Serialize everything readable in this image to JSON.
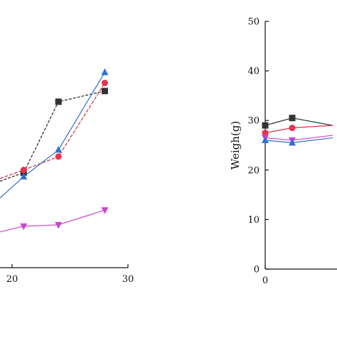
{
  "chart_data": [
    {
      "type": "line",
      "title": "",
      "xlabel": "",
      "ylabel": "",
      "xlim": [
        10,
        30
      ],
      "x_ticks": [
        20,
        30
      ],
      "grid": false,
      "legend": "none",
      "series": [
        {
          "marker": "square",
          "color": "#333333",
          "line_color": "#222222",
          "x": [
            21,
            24,
            28
          ],
          "y": [
            35.5,
            62,
            66
          ]
        },
        {
          "marker": "circle",
          "color": "#e8334a",
          "line_color": "#d03040",
          "x": [
            21,
            24,
            28
          ],
          "y": [
            36.5,
            41.5,
            69
          ]
        },
        {
          "marker": "triangle-up",
          "color": "#2f6fd6",
          "line_color": "#2f6fd6",
          "x": [
            21,
            24,
            28
          ],
          "y": [
            34,
            44,
            73
          ]
        },
        {
          "marker": "triangle-down",
          "color": "#cc44cc",
          "line_color": "#cc44cc",
          "x": [
            21,
            24,
            28
          ],
          "y": [
            15.5,
            16,
            21.5
          ]
        }
      ]
    },
    {
      "type": "line",
      "title": "",
      "xlabel": "",
      "ylabel": "Weigh(g)",
      "xlim": [
        0,
        14
      ],
      "ylim": [
        0,
        50
      ],
      "x_ticks": [
        0
      ],
      "y_ticks": [
        0,
        10,
        20,
        30,
        40,
        50
      ],
      "grid": false,
      "legend": "none",
      "series": [
        {
          "marker": "square",
          "color": "#333333",
          "line_color": "#222222",
          "x": [
            0,
            3,
            6
          ],
          "y": [
            29,
            30.5,
            29
          ]
        },
        {
          "marker": "circle",
          "color": "#e8334a",
          "line_color": "#d03040",
          "x": [
            0,
            3,
            6
          ],
          "y": [
            27.5,
            28.5,
            29
          ]
        },
        {
          "marker": "triangle-down",
          "color": "#cc44cc",
          "line_color": "#cc44cc",
          "x": [
            0,
            3,
            6
          ],
          "y": [
            26.5,
            26,
            27
          ]
        },
        {
          "marker": "triangle-up",
          "color": "#2f6fd6",
          "line_color": "#2f6fd6",
          "x": [
            0,
            3,
            6
          ],
          "y": [
            26,
            25.5,
            26.5
          ]
        }
      ]
    }
  ]
}
